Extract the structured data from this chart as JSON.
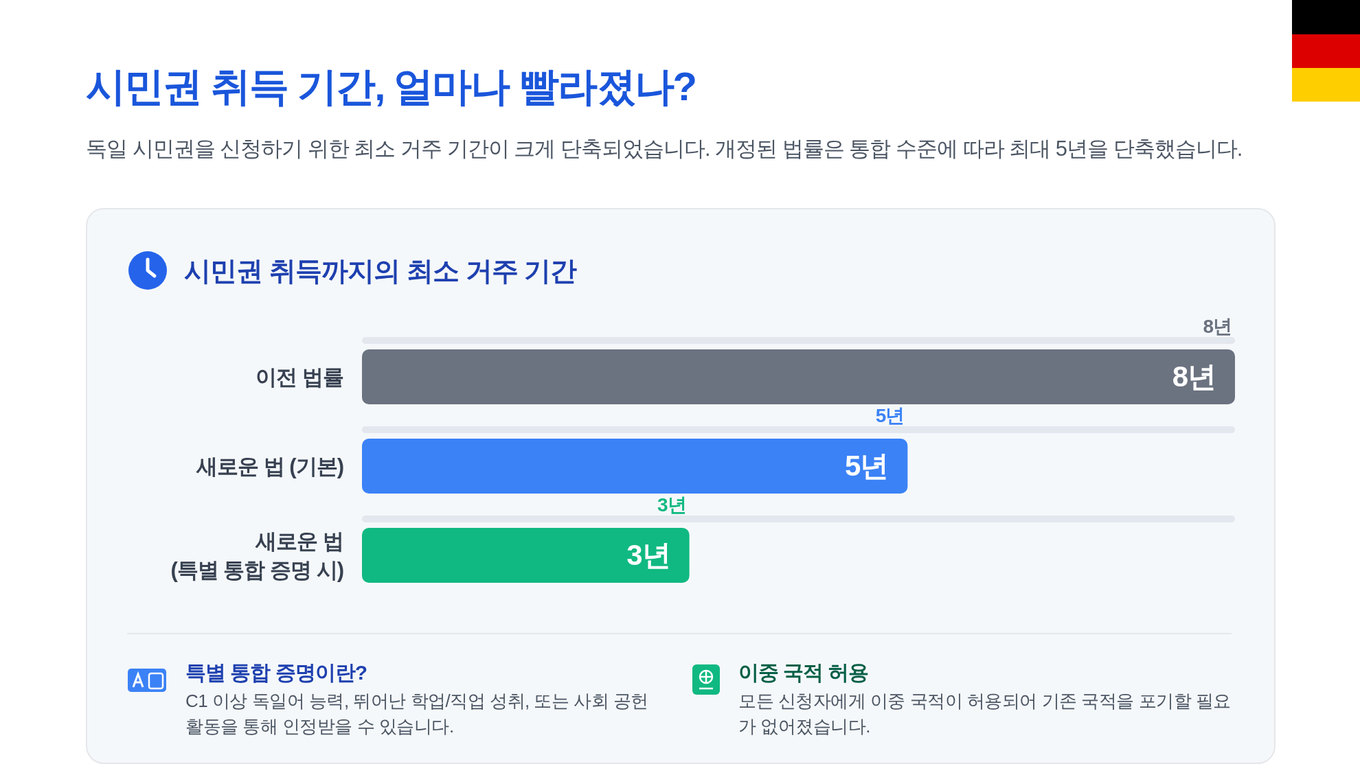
{
  "chart_data": {
    "type": "bar",
    "orientation": "horizontal",
    "title": "시민권 취득 기간, 얼마나 빨라졌나?",
    "subtitle": "독일 시민권을 신청하기 위한 최소 거주 기간이 크게 단축되었습니다. 개정된 법률은 통합 수준에 따라 최대 5년을 단축했습니다.",
    "categories": [
      "이전 법률",
      "새로운 법 (기본)",
      "새로운 법 (특별 통합 증명 시)"
    ],
    "series": [
      {
        "color": "#e3e7ee",
        "values": [
          8,
          8,
          8
        ]
      },
      {
        "colors": [
          "#6b7280",
          "#3b82f6",
          "#10b981"
        ],
        "values": [
          8,
          5,
          3
        ],
        "value_labels": [
          "8년",
          "5년",
          "3년"
        ]
      }
    ],
    "xlim": [
      0,
      8
    ],
    "annotations": [
      "시민권 취득까지의 최소 거주 기간",
      "특별 통합 증명이란?",
      "C1 이상 독일어 능력, 뛰어난 학업/직업 성취, 또는 사회 공헌 활동을 통해 인정받을 수 있습니다.",
      "이중 국적 허용",
      "모든 신청자에게 이중 국적이 허용되어 기존 국적을 포기할 필요가 없어졌습니다."
    ]
  }
}
